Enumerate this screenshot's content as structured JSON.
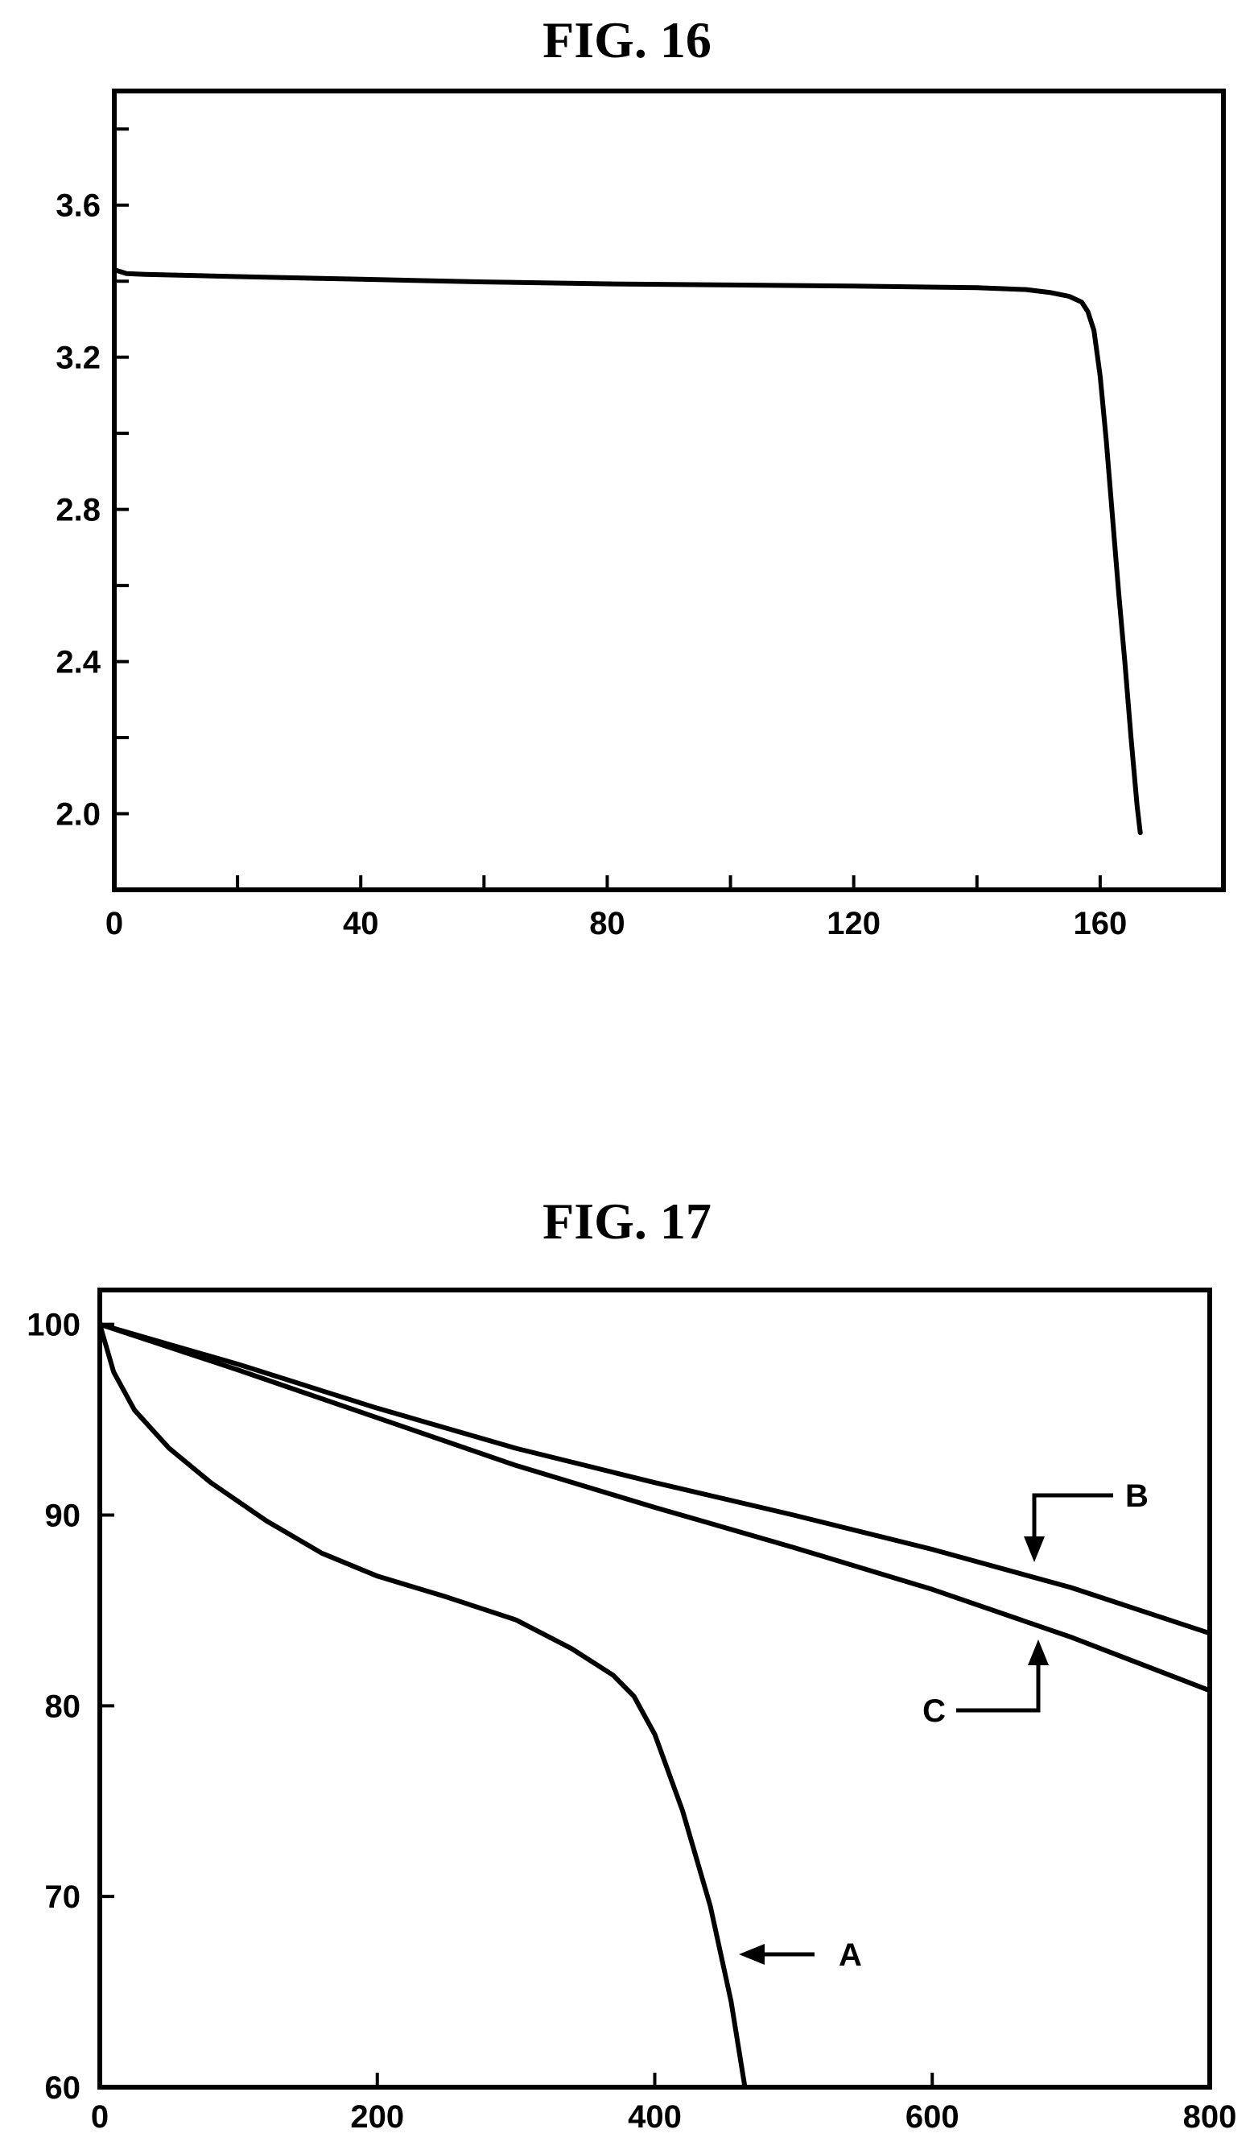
{
  "figures": [
    {
      "title": "FIG. 16"
    },
    {
      "title": "FIG. 17"
    }
  ],
  "chart_data": [
    {
      "type": "line",
      "title": "FIG. 16",
      "xlabel": "",
      "ylabel": "",
      "xlim": [
        0,
        180
      ],
      "ylim": [
        1.8,
        3.9
      ],
      "x_ticks": [
        0,
        40,
        80,
        120,
        160
      ],
      "x_minor_ticks": [
        20,
        60,
        100,
        140,
        180
      ],
      "y_ticks": [
        "2.0",
        "2.4",
        "2.8",
        "3.2",
        "3.6"
      ],
      "y_minor_ticks": [
        2.2,
        2.6,
        3.0,
        3.4,
        3.8
      ],
      "grid": false,
      "series": [
        {
          "x": [
            0,
            1,
            2,
            5,
            20,
            40,
            60,
            80,
            100,
            120,
            140,
            148,
            152,
            155,
            157,
            158,
            159,
            160,
            161,
            162,
            163,
            164,
            165,
            166,
            166.5
          ],
          "values": [
            3.43,
            3.425,
            3.42,
            3.418,
            3.412,
            3.405,
            3.398,
            3.393,
            3.39,
            3.387,
            3.383,
            3.378,
            3.37,
            3.36,
            3.345,
            3.32,
            3.27,
            3.15,
            2.98,
            2.78,
            2.58,
            2.4,
            2.2,
            2.02,
            1.95
          ]
        }
      ]
    },
    {
      "type": "line",
      "title": "FIG. 17",
      "xlabel": "",
      "ylabel": "",
      "xlim": [
        0,
        800
      ],
      "ylim": [
        60,
        101.8
      ],
      "x_ticks": [
        "0",
        "200",
        "400",
        "600",
        "800"
      ],
      "y_ticks": [
        "60",
        "70",
        "80",
        "90",
        "100"
      ],
      "grid": false,
      "series": [
        {
          "name": "A",
          "x": [
            0,
            10,
            25,
            50,
            80,
            120,
            160,
            200,
            250,
            300,
            340,
            370,
            385,
            400,
            420,
            440,
            455,
            465
          ],
          "values": [
            100,
            97.5,
            95.5,
            93.5,
            91.7,
            89.7,
            88.0,
            86.8,
            85.7,
            84.5,
            83.0,
            81.6,
            80.5,
            78.5,
            74.5,
            69.5,
            64.5,
            60
          ]
        },
        {
          "name": "B",
          "x": [
            0,
            100,
            200,
            300,
            400,
            500,
            600,
            700,
            800
          ],
          "values": [
            100,
            97.9,
            95.6,
            93.5,
            91.7,
            90.0,
            88.2,
            86.2,
            83.8
          ]
        },
        {
          "name": "C",
          "x": [
            0,
            100,
            200,
            300,
            400,
            500,
            600,
            700,
            800
          ],
          "values": [
            100,
            97.6,
            95.1,
            92.6,
            90.4,
            88.3,
            86.1,
            83.6,
            80.8
          ]
        }
      ],
      "annotations": [
        {
          "label": "A",
          "series": "A",
          "arrow": "left"
        },
        {
          "label": "B",
          "series": "B",
          "arrow": "down"
        },
        {
          "label": "C",
          "series": "C",
          "arrow": "up"
        }
      ]
    }
  ]
}
